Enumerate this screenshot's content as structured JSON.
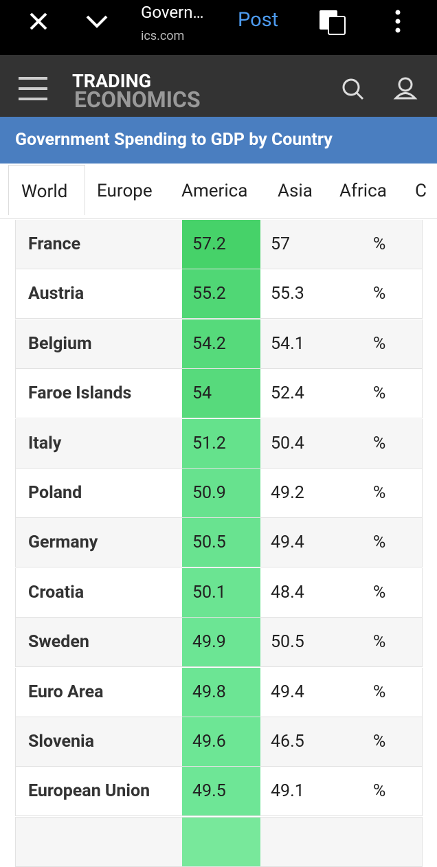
{
  "browser": {
    "page_title": "Govern…",
    "url": "ics.com",
    "action": "Post"
  },
  "site": {
    "logo_top": "TRADING",
    "logo_bottom": "ECONOMICS"
  },
  "page": {
    "title": "Government Spending to GDP by Country"
  },
  "tabs": [
    "World",
    "Europe",
    "America",
    "Asia",
    "Africa",
    "C"
  ],
  "table": {
    "rows": [
      [
        "France",
        57.2,
        57,
        "%"
      ],
      [
        "Austria",
        55.2,
        55.3,
        "%"
      ],
      [
        "Belgium",
        54.2,
        54.1,
        "%"
      ],
      [
        "Faroe Islands",
        54,
        52.4,
        "%"
      ],
      [
        "Italy",
        51.2,
        50.4,
        "%"
      ],
      [
        "Poland",
        50.9,
        49.2,
        "%"
      ],
      [
        "Germany",
        50.5,
        49.4,
        "%"
      ],
      [
        "Croatia",
        50.1,
        48.4,
        "%"
      ],
      [
        "Sweden",
        49.9,
        50.5,
        "%"
      ],
      [
        "Euro Area",
        49.8,
        49.4,
        "%"
      ],
      [
        "Slovenia",
        49.6,
        46.5,
        "%"
      ],
      [
        "European Union",
        49.5,
        49.1,
        "%"
      ]
    ]
  }
}
